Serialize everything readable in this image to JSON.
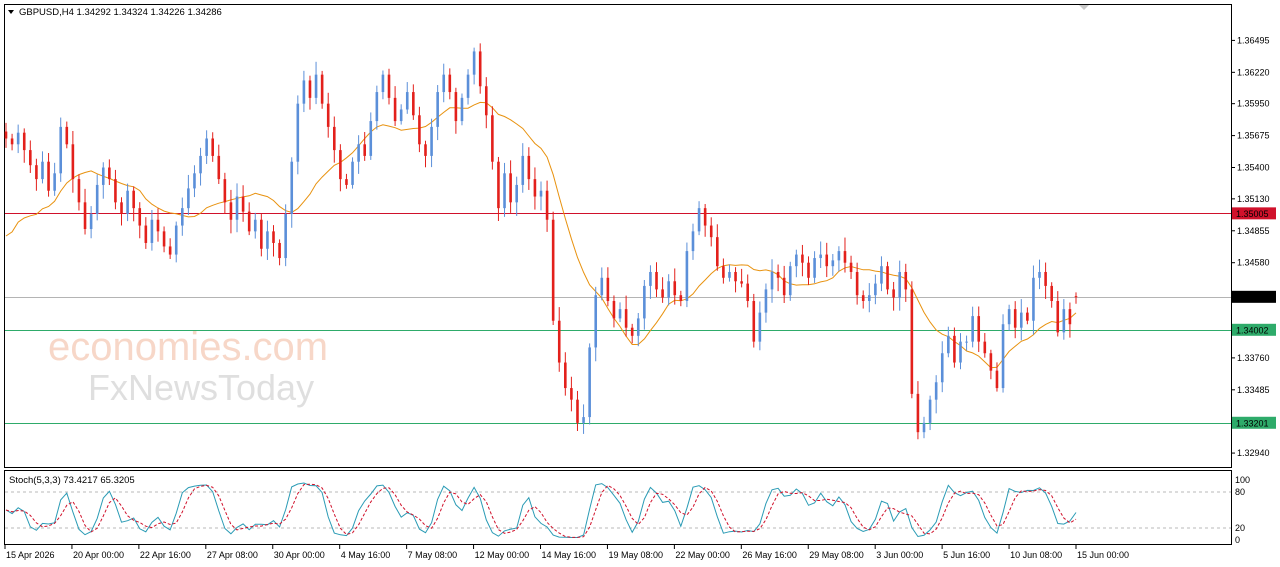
{
  "header": {
    "symbol_info": "GBPUSD,H4  1.34292 1.34324 1.34226 1.34286",
    "collapse_icon": "triangle-down-icon"
  },
  "watermark": {
    "line1": "economies.com",
    "line2": "FxNewsToday"
  },
  "price_axis": {
    "labels": [
      "1.36495",
      "1.36220",
      "1.35950",
      "1.35675",
      "1.35400",
      "1.35130",
      "1.34855",
      "1.34580",
      "1.34010",
      "1.33760",
      "1.33485",
      "1.32940"
    ]
  },
  "price_tags": [
    {
      "value": 1.35005,
      "label": "1.35005",
      "color": "#d0112b",
      "type": "resistance"
    },
    {
      "value": 1.34286,
      "label": "1.34286",
      "color": "#000000",
      "type": "current"
    },
    {
      "value": 1.34002,
      "label": "1.34002",
      "color": "#2eab6a",
      "type": "support"
    },
    {
      "value": 1.33201,
      "label": "1.33201",
      "color": "#2eab6a",
      "type": "support"
    }
  ],
  "time_axis": {
    "labels": [
      "15 Apr 2026",
      "20 Apr 00:00",
      "22 Apr 16:00",
      "27 Apr 08:00",
      "30 Apr 00:00",
      "4 May 16:00",
      "7 May 08:00",
      "12 May 00:00",
      "14 May 16:00",
      "19 May 08:00",
      "22 May 00:00",
      "26 May 16:00",
      "29 May 08:00",
      "3 Jun 00:00",
      "5 Jun 16:00",
      "10 Jun 08:00",
      "15 Jun 00:00"
    ]
  },
  "stoch": {
    "label": "Stoch(5,3,3) 73.4217 65.3205",
    "axis_labels": [
      "100",
      "80",
      "20",
      "0"
    ],
    "k_color": "#2a9bb5",
    "d_color": "#d0112b"
  },
  "chart_data": {
    "type": "candlestick",
    "symbol": "GBPUSD",
    "timeframe": "H4",
    "ohlc_last": {
      "open": 1.34292,
      "high": 1.34324,
      "low": 1.34226,
      "close": 1.34286
    },
    "y_range": [
      1.3282,
      1.368
    ],
    "colors": {
      "bull": "#5b8fd9",
      "bear": "#e3201b",
      "ma": "#e8920f",
      "resistance": "#d0112b",
      "support": "#2eab6a",
      "current": "#b4b4b4"
    },
    "closes": [
      1.3565,
      1.356,
      1.357,
      1.3555,
      1.3542,
      1.353,
      1.3545,
      1.352,
      1.3535,
      1.3575,
      1.356,
      1.353,
      1.351,
      1.3487,
      1.35,
      1.3525,
      1.354,
      1.353,
      1.351,
      1.35,
      1.352,
      1.3505,
      1.349,
      1.3475,
      1.3495,
      1.3485,
      1.3472,
      1.3465,
      1.349,
      1.3505,
      1.3522,
      1.3535,
      1.355,
      1.3565,
      1.355,
      1.353,
      1.351,
      1.3495,
      1.3515,
      1.3502,
      1.3485,
      1.3495,
      1.347,
      1.3485,
      1.3475,
      1.3462,
      1.35,
      1.3545,
      1.3595,
      1.3615,
      1.36,
      1.362,
      1.3595,
      1.3575,
      1.3555,
      1.353,
      1.3525,
      1.3545,
      1.356,
      1.355,
      1.358,
      1.3605,
      1.362,
      1.36,
      1.358,
      1.359,
      1.3605,
      1.3585,
      1.356,
      1.355,
      1.3575,
      1.3605,
      1.362,
      1.3605,
      1.358,
      1.36,
      1.362,
      1.364,
      1.361,
      1.3585,
      1.3545,
      1.3505,
      1.3535,
      1.351,
      1.3525,
      1.355,
      1.353,
      1.3515,
      1.352,
      1.3495,
      1.3408,
      1.3372,
      1.335,
      1.334,
      1.332,
      1.3325,
      1.3385,
      1.343,
      1.3445,
      1.3425,
      1.341,
      1.3418,
      1.3402,
      1.3395,
      1.341,
      1.3438,
      1.345,
      1.3435,
      1.3428,
      1.3442,
      1.343,
      1.3425,
      1.3468,
      1.3485,
      1.3505,
      1.349,
      1.348,
      1.3455,
      1.3445,
      1.345,
      1.3442,
      1.344,
      1.3425,
      1.339,
      1.3415,
      1.3435,
      1.345,
      1.3445,
      1.343,
      1.3455,
      1.3465,
      1.3458,
      1.3445,
      1.3462,
      1.3465,
      1.3455,
      1.346,
      1.3468,
      1.3458,
      1.345,
      1.343,
      1.3425,
      1.343,
      1.344,
      1.3455,
      1.3435,
      1.3428,
      1.345,
      1.3435,
      1.3345,
      1.3312,
      1.332,
      1.334,
      1.3355,
      1.338,
      1.3395,
      1.3372,
      1.339,
      1.339,
      1.3412,
      1.339,
      1.338,
      1.3365,
      1.335,
      1.3405,
      1.3418,
      1.3402,
      1.3415,
      1.3408,
      1.3445,
      1.345,
      1.3438,
      1.3425,
      1.3398,
      1.3418,
      1.3405,
      1.3429
    ]
  }
}
